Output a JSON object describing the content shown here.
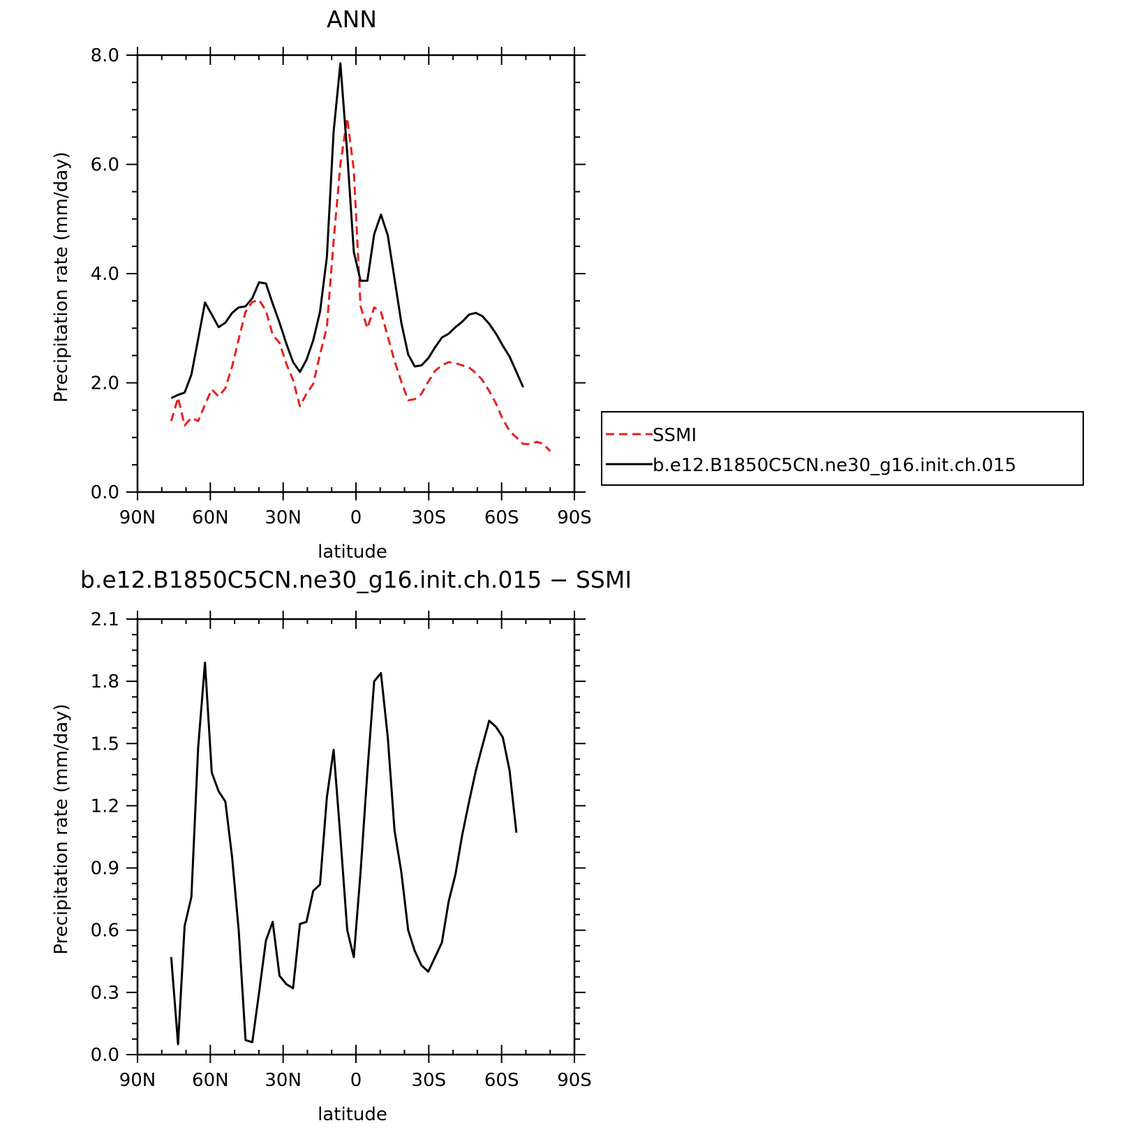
{
  "chart_data": [
    {
      "type": "line",
      "title": "ANN",
      "xlabel": "latitude",
      "ylabel": "Precipitation rate (mm/day)",
      "xlim": [
        90,
        -90
      ],
      "ylim": [
        0,
        8
      ],
      "x_ticks": [
        {
          "v": 90,
          "label": "90N"
        },
        {
          "v": 60,
          "label": "60N"
        },
        {
          "v": 30,
          "label": "30N"
        },
        {
          "v": 0,
          "label": "0"
        },
        {
          "v": -30,
          "label": "30S"
        },
        {
          "v": -60,
          "label": "60S"
        },
        {
          "v": -90,
          "label": "90S"
        }
      ],
      "y_ticks": [
        {
          "v": 0,
          "label": "0.0"
        },
        {
          "v": 2,
          "label": "2.0"
        },
        {
          "v": 4,
          "label": "4.0"
        },
        {
          "v": 6,
          "label": "6.0"
        },
        {
          "v": 8,
          "label": "8.0"
        }
      ],
      "legend_position": "right",
      "series": [
        {
          "name": "SSMI",
          "color": "#e8201e",
          "dash": true,
          "points": [
            [
              76.1,
              1.3
            ],
            [
              73.3,
              1.73
            ],
            [
              70.6,
              1.22
            ],
            [
              67.8,
              1.36
            ],
            [
              65.0,
              1.3
            ],
            [
              62.2,
              1.6
            ],
            [
              59.4,
              1.88
            ],
            [
              56.6,
              1.75
            ],
            [
              53.8,
              1.9
            ],
            [
              51.0,
              2.3
            ],
            [
              48.3,
              2.8
            ],
            [
              45.5,
              3.3
            ],
            [
              42.7,
              3.48
            ],
            [
              39.9,
              3.52
            ],
            [
              37.1,
              3.32
            ],
            [
              34.3,
              2.88
            ],
            [
              31.5,
              2.73
            ],
            [
              28.7,
              2.35
            ],
            [
              25.9,
              2.05
            ],
            [
              23.1,
              1.57
            ],
            [
              20.4,
              1.8
            ],
            [
              17.6,
              1.98
            ],
            [
              14.8,
              2.52
            ],
            [
              12.0,
              3.02
            ],
            [
              9.2,
              4.6
            ],
            [
              6.4,
              6.0
            ],
            [
              3.6,
              6.85
            ],
            [
              0.9,
              5.9
            ],
            [
              -1.9,
              3.4
            ],
            [
              -4.7,
              3.0
            ],
            [
              -7.5,
              3.38
            ],
            [
              -10.3,
              3.3
            ],
            [
              -13.1,
              2.85
            ],
            [
              -15.9,
              2.4
            ],
            [
              -18.7,
              2.02
            ],
            [
              -21.5,
              1.68
            ],
            [
              -24.2,
              1.7
            ],
            [
              -27.0,
              1.8
            ],
            [
              -29.8,
              2.02
            ],
            [
              -32.6,
              2.22
            ],
            [
              -35.4,
              2.32
            ],
            [
              -38.2,
              2.38
            ],
            [
              -41.0,
              2.36
            ],
            [
              -43.8,
              2.32
            ],
            [
              -46.6,
              2.28
            ],
            [
              -49.4,
              2.18
            ],
            [
              -52.1,
              2.05
            ],
            [
              -54.9,
              1.85
            ],
            [
              -57.7,
              1.62
            ],
            [
              -60.5,
              1.33
            ],
            [
              -63.3,
              1.12
            ],
            [
              -66.1,
              1.0
            ],
            [
              -68.9,
              0.88
            ],
            [
              -71.7,
              0.88
            ],
            [
              -74.5,
              0.92
            ],
            [
              -77.2,
              0.88
            ],
            [
              -80.0,
              0.75
            ]
          ]
        },
        {
          "name": "b.e12.B1850C5CN.ne30_g16.init.ch.015",
          "color": "#000000",
          "dash": false,
          "points": [
            [
              76.1,
              1.72
            ],
            [
              73.3,
              1.78
            ],
            [
              70.6,
              1.82
            ],
            [
              67.8,
              2.15
            ],
            [
              65.0,
              2.8
            ],
            [
              62.2,
              3.47
            ],
            [
              59.4,
              3.25
            ],
            [
              56.6,
              3.02
            ],
            [
              53.8,
              3.1
            ],
            [
              51.0,
              3.28
            ],
            [
              48.3,
              3.38
            ],
            [
              45.5,
              3.4
            ],
            [
              42.7,
              3.55
            ],
            [
              39.9,
              3.84
            ],
            [
              37.1,
              3.82
            ],
            [
              34.3,
              3.45
            ],
            [
              31.5,
              3.1
            ],
            [
              28.7,
              2.72
            ],
            [
              25.9,
              2.38
            ],
            [
              23.1,
              2.2
            ],
            [
              20.4,
              2.42
            ],
            [
              17.6,
              2.78
            ],
            [
              14.8,
              3.3
            ],
            [
              12.0,
              4.3
            ],
            [
              9.2,
              6.6
            ],
            [
              6.4,
              7.85
            ],
            [
              3.6,
              6.2
            ],
            [
              0.9,
              4.4
            ],
            [
              -1.9,
              3.87
            ],
            [
              -4.7,
              3.87
            ],
            [
              -7.5,
              4.72
            ],
            [
              -10.3,
              5.08
            ],
            [
              -13.1,
              4.7
            ],
            [
              -15.9,
              3.9
            ],
            [
              -18.7,
              3.1
            ],
            [
              -21.5,
              2.52
            ],
            [
              -24.2,
              2.3
            ],
            [
              -27.0,
              2.32
            ],
            [
              -29.8,
              2.45
            ],
            [
              -32.6,
              2.65
            ],
            [
              -35.4,
              2.83
            ],
            [
              -38.2,
              2.9
            ],
            [
              -41.0,
              3.02
            ],
            [
              -43.8,
              3.12
            ],
            [
              -46.6,
              3.25
            ],
            [
              -49.4,
              3.28
            ],
            [
              -52.1,
              3.22
            ],
            [
              -54.9,
              3.08
            ],
            [
              -57.7,
              2.9
            ],
            [
              -60.5,
              2.68
            ],
            [
              -63.3,
              2.48
            ],
            [
              -66.1,
              2.2
            ],
            [
              -68.9,
              1.92
            ]
          ]
        }
      ]
    },
    {
      "type": "line",
      "title": "b.e12.B1850C5CN.ne30_g16.init.ch.015 − SSMI",
      "xlabel": "latitude",
      "ylabel": "Precipitation rate (mm/day)",
      "xlim": [
        90,
        -90
      ],
      "ylim": [
        0,
        2.1
      ],
      "x_ticks": [
        {
          "v": 90,
          "label": "90N"
        },
        {
          "v": 60,
          "label": "60N"
        },
        {
          "v": 30,
          "label": "30N"
        },
        {
          "v": 0,
          "label": "0"
        },
        {
          "v": -30,
          "label": "30S"
        },
        {
          "v": -60,
          "label": "60S"
        },
        {
          "v": -90,
          "label": "90S"
        }
      ],
      "y_ticks": [
        {
          "v": 0,
          "label": "0.0"
        },
        {
          "v": 0.3,
          "label": "0.3"
        },
        {
          "v": 0.6,
          "label": "0.6"
        },
        {
          "v": 0.9,
          "label": "0.9"
        },
        {
          "v": 1.2,
          "label": "1.2"
        },
        {
          "v": 1.5,
          "label": "1.5"
        },
        {
          "v": 1.8,
          "label": "1.8"
        },
        {
          "v": 2.1,
          "label": "2.1"
        }
      ],
      "series": [
        {
          "color": "#000000",
          "dash": false,
          "points": [
            [
              76.1,
              0.47
            ],
            [
              73.3,
              0.05
            ],
            [
              70.6,
              0.62
            ],
            [
              67.8,
              0.76
            ],
            [
              65.0,
              1.48
            ],
            [
              62.2,
              1.89
            ],
            [
              59.4,
              1.36
            ],
            [
              56.6,
              1.27
            ],
            [
              53.8,
              1.22
            ],
            [
              51.0,
              0.95
            ],
            [
              48.3,
              0.6
            ],
            [
              45.5,
              0.07
            ],
            [
              42.7,
              0.06
            ],
            [
              39.9,
              0.3
            ],
            [
              37.1,
              0.55
            ],
            [
              34.3,
              0.64
            ],
            [
              31.5,
              0.38
            ],
            [
              28.7,
              0.34
            ],
            [
              25.9,
              0.32
            ],
            [
              23.1,
              0.63
            ],
            [
              20.4,
              0.64
            ],
            [
              17.6,
              0.79
            ],
            [
              14.8,
              0.82
            ],
            [
              12.0,
              1.24
            ],
            [
              9.2,
              1.47
            ],
            [
              6.4,
              1.05
            ],
            [
              3.6,
              0.6
            ],
            [
              0.9,
              0.47
            ],
            [
              -1.9,
              0.88
            ],
            [
              -4.7,
              1.36
            ],
            [
              -7.5,
              1.8
            ],
            [
              -10.3,
              1.84
            ],
            [
              -13.1,
              1.53
            ],
            [
              -15.9,
              1.08
            ],
            [
              -18.7,
              0.88
            ],
            [
              -21.5,
              0.6
            ],
            [
              -24.2,
              0.5
            ],
            [
              -27.0,
              0.43
            ],
            [
              -29.8,
              0.4
            ],
            [
              -32.6,
              0.47
            ],
            [
              -35.4,
              0.54
            ],
            [
              -38.2,
              0.74
            ],
            [
              -41.0,
              0.87
            ],
            [
              -43.8,
              1.06
            ],
            [
              -46.6,
              1.22
            ],
            [
              -49.4,
              1.37
            ],
            [
              -52.1,
              1.49
            ],
            [
              -54.9,
              1.61
            ],
            [
              -57.7,
              1.58
            ],
            [
              -60.5,
              1.53
            ],
            [
              -63.3,
              1.37
            ],
            [
              -66.1,
              1.07
            ]
          ]
        }
      ]
    }
  ],
  "panels": [
    {
      "title": "ANN",
      "xlabel": "latitude",
      "ylabel": "Precipitation rate (mm/day)"
    },
    {
      "title": "b.e12.B1850C5CN.ne30_g16.init.ch.015 − SSMI",
      "xlabel": "latitude",
      "ylabel": "Precipitation rate (mm/day)"
    }
  ],
  "legend": {
    "items": [
      {
        "label": "SSMI",
        "color": "#e8201e",
        "dash": true
      },
      {
        "label": "b.e12.B1850C5CN.ne30_g16.init.ch.015",
        "color": "#000000",
        "dash": false
      }
    ]
  }
}
